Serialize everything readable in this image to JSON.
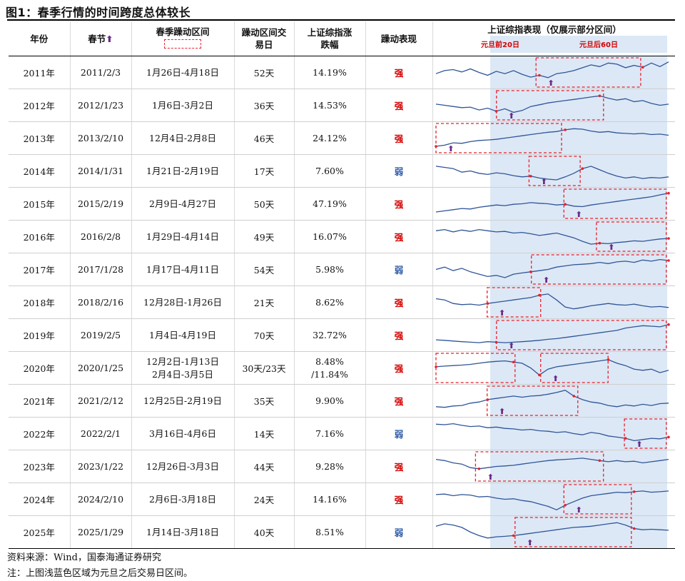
{
  "title": "图1：春季行情的时间跨度总体较长",
  "headers": {
    "year": "年份",
    "spring_festival": "春节",
    "spring_festival_arrow": "⬆",
    "interval_line1": "春季躁动区间",
    "trading_days_line1": "躁动区间交",
    "trading_days_line2": "易日",
    "change_line1": "上证综指涨",
    "change_line2": "跌幅",
    "performance": "躁动表现",
    "chart": "上证综指表现（仅展示部分区间）",
    "chart_label_before": "元旦前20日",
    "chart_label_after": "元旦后60日"
  },
  "colors": {
    "strong": "#d40000",
    "weak": "#2e5aa8",
    "line": "#2f5597",
    "shade": "#dce8f6",
    "dash": "#e8202a",
    "arrow": "#6a2a8a"
  },
  "rows": [
    {
      "year": "2011年",
      "festival": "2011/2/3",
      "interval": "1月26日-4月18日",
      "days": "52天",
      "change": "14.19%",
      "perf": "强",
      "strong": true,
      "boxes": [
        [
          0.43,
          0.88
        ]
      ],
      "line": [
        0.55,
        0.42,
        0.38,
        0.48,
        0.35,
        0.5,
        0.62,
        0.45,
        0.55,
        0.42,
        0.58,
        0.7,
        0.62,
        0.72,
        0.55,
        0.5,
        0.42,
        0.3,
        0.18,
        0.25,
        0.1,
        0.15,
        0.3,
        0.2,
        0.28,
        0.1,
        0.25,
        0.05
      ]
    },
    {
      "year": "2012年",
      "festival": "2012/1/23",
      "interval": "1月6日-3月2日",
      "days": "36天",
      "change": "14.53%",
      "perf": "强",
      "strong": true,
      "boxes": [
        [
          0.26,
          0.72
        ]
      ],
      "line": [
        0.45,
        0.5,
        0.55,
        0.6,
        0.58,
        0.7,
        0.62,
        0.75,
        0.65,
        0.8,
        0.72,
        0.55,
        0.48,
        0.4,
        0.35,
        0.3,
        0.25,
        0.2,
        0.15,
        0.1,
        0.2,
        0.28,
        0.22,
        0.35,
        0.3,
        0.42,
        0.5,
        0.45
      ]
    },
    {
      "year": "2013年",
      "festival": "2013/2/10",
      "interval": "12月4日-2月8日",
      "days": "46天",
      "change": "24.12%",
      "perf": "强",
      "strong": true,
      "boxes": [
        [
          0.0,
          0.54
        ]
      ],
      "line": [
        0.85,
        0.8,
        0.7,
        0.72,
        0.65,
        0.6,
        0.58,
        0.55,
        0.5,
        0.45,
        0.4,
        0.35,
        0.3,
        0.25,
        0.22,
        0.15,
        0.1,
        0.12,
        0.2,
        0.25,
        0.22,
        0.28,
        0.3,
        0.32,
        0.3,
        0.35,
        0.33,
        0.38
      ]
    },
    {
      "year": "2014年",
      "festival": "2014/1/31",
      "interval": "1月21日-2月19日",
      "days": "17天",
      "change": "7.60%",
      "perf": "弱",
      "strong": false,
      "boxes": [
        [
          0.4,
          0.62
        ]
      ],
      "line": [
        0.3,
        0.35,
        0.4,
        0.55,
        0.5,
        0.6,
        0.65,
        0.58,
        0.62,
        0.7,
        0.75,
        0.72,
        0.8,
        0.85,
        0.88,
        0.75,
        0.6,
        0.4,
        0.3,
        0.45,
        0.6,
        0.72,
        0.8,
        0.75,
        0.82,
        0.78,
        0.8,
        0.75
      ]
    },
    {
      "year": "2015年",
      "festival": "2015/2/19",
      "interval": "2月9日-4月27日",
      "days": "50天",
      "change": "47.19%",
      "perf": "强",
      "strong": true,
      "boxes": [
        [
          0.55,
          0.99
        ]
      ],
      "line": [
        0.85,
        0.8,
        0.75,
        0.7,
        0.72,
        0.65,
        0.6,
        0.55,
        0.58,
        0.52,
        0.5,
        0.45,
        0.48,
        0.5,
        0.55,
        0.52,
        0.6,
        0.62,
        0.55,
        0.5,
        0.45,
        0.4,
        0.35,
        0.3,
        0.25,
        0.2,
        0.12,
        0.05
      ]
    },
    {
      "year": "2016年",
      "festival": "2016/2/8",
      "interval": "1月29日-4月14日",
      "days": "49天",
      "change": "16.07%",
      "perf": "强",
      "strong": true,
      "boxes": [
        [
          0.69,
          0.99
        ]
      ],
      "line": [
        0.25,
        0.2,
        0.3,
        0.22,
        0.28,
        0.2,
        0.25,
        0.3,
        0.28,
        0.35,
        0.32,
        0.38,
        0.45,
        0.4,
        0.35,
        0.45,
        0.55,
        0.7,
        0.82,
        0.78,
        0.8,
        0.75,
        0.72,
        0.68,
        0.7,
        0.65,
        0.6,
        0.58
      ]
    },
    {
      "year": "2017年",
      "festival": "2017/1/28",
      "interval": "1月17日-4月11日",
      "days": "54天",
      "change": "5.98%",
      "perf": "弱",
      "strong": false,
      "boxes": [
        [
          0.41,
          0.99
        ]
      ],
      "line": [
        0.5,
        0.4,
        0.55,
        0.45,
        0.6,
        0.7,
        0.8,
        0.75,
        0.85,
        0.7,
        0.65,
        0.6,
        0.55,
        0.5,
        0.4,
        0.35,
        0.3,
        0.28,
        0.25,
        0.2,
        0.25,
        0.18,
        0.15,
        0.2,
        0.1,
        0.15,
        0.08,
        0.12
      ]
    },
    {
      "year": "2018年",
      "festival": "2018/2/16",
      "interval": "12月28日-1月26日",
      "days": "21天",
      "change": "8.62%",
      "perf": "强",
      "strong": true,
      "boxes": [
        [
          0.22,
          0.45
        ]
      ],
      "line": [
        0.35,
        0.4,
        0.55,
        0.6,
        0.58,
        0.62,
        0.55,
        0.5,
        0.45,
        0.4,
        0.35,
        0.3,
        0.2,
        0.15,
        0.4,
        0.7,
        0.78,
        0.72,
        0.65,
        0.6,
        0.55,
        0.6,
        0.62,
        0.58,
        0.65,
        0.7,
        0.68,
        0.72
      ]
    },
    {
      "year": "2019年",
      "festival": "2019/2/5",
      "interval": "1月4日-4月19日",
      "days": "70天",
      "change": "32.72%",
      "perf": "强",
      "strong": true,
      "boxes": [
        [
          0.26,
          0.99
        ]
      ],
      "line": [
        0.7,
        0.72,
        0.75,
        0.78,
        0.8,
        0.82,
        0.78,
        0.8,
        0.82,
        0.8,
        0.78,
        0.75,
        0.72,
        0.68,
        0.65,
        0.6,
        0.55,
        0.5,
        0.45,
        0.4,
        0.35,
        0.3,
        0.2,
        0.15,
        0.1,
        0.12,
        0.15,
        0.05
      ]
    },
    {
      "year": "2020年",
      "festival": "2020/1/25",
      "interval": "12月2日-1月13日\n2月4日-3月5日",
      "days": "30天/23天",
      "change": "8.48%\n/11.84%",
      "perf": "强",
      "strong": true,
      "boxes": [
        [
          0.0,
          0.34
        ],
        [
          0.45,
          0.74
        ]
      ],
      "line": [
        0.45,
        0.42,
        0.4,
        0.38,
        0.35,
        0.3,
        0.25,
        0.22,
        0.2,
        0.25,
        0.3,
        0.5,
        0.8,
        0.55,
        0.45,
        0.4,
        0.35,
        0.3,
        0.25,
        0.2,
        0.15,
        0.3,
        0.4,
        0.55,
        0.6,
        0.55,
        0.7,
        0.6
      ]
    },
    {
      "year": "2021年",
      "festival": "2021/2/12",
      "interval": "12月25日-2月19日",
      "days": "35天",
      "change": "9.90%",
      "perf": "强",
      "strong": true,
      "boxes": [
        [
          0.22,
          0.61
        ]
      ],
      "line": [
        0.75,
        0.78,
        0.72,
        0.7,
        0.6,
        0.55,
        0.45,
        0.4,
        0.35,
        0.3,
        0.35,
        0.3,
        0.28,
        0.22,
        0.15,
        0.05,
        0.3,
        0.45,
        0.55,
        0.6,
        0.7,
        0.75,
        0.68,
        0.72,
        0.65,
        0.7,
        0.62,
        0.6
      ]
    },
    {
      "year": "2022年",
      "festival": "2022/2/1",
      "interval": "3月16日-4月6日",
      "days": "14天",
      "change": "7.16%",
      "perf": "弱",
      "strong": false,
      "boxes": [
        [
          0.81,
          0.99
        ]
      ],
      "line": [
        0.1,
        0.12,
        0.08,
        0.15,
        0.2,
        0.18,
        0.25,
        0.22,
        0.28,
        0.3,
        0.35,
        0.32,
        0.38,
        0.4,
        0.45,
        0.42,
        0.5,
        0.55,
        0.45,
        0.5,
        0.6,
        0.65,
        0.7,
        0.8,
        0.75,
        0.7,
        0.72,
        0.65
      ]
    },
    {
      "year": "2023年",
      "festival": "2023/1/22",
      "interval": "12月26日-3月3日",
      "days": "44天",
      "change": "9.28%",
      "perf": "强",
      "strong": true,
      "boxes": [
        [
          0.17,
          0.72
        ]
      ],
      "line": [
        0.2,
        0.25,
        0.35,
        0.4,
        0.55,
        0.6,
        0.55,
        0.5,
        0.48,
        0.45,
        0.4,
        0.35,
        0.3,
        0.25,
        0.22,
        0.2,
        0.18,
        0.15,
        0.2,
        0.25,
        0.3,
        0.25,
        0.3,
        0.28,
        0.35,
        0.3,
        0.25,
        0.2
      ]
    },
    {
      "year": "2024年",
      "festival": "2024/2/10",
      "interval": "2月6日-3月18日",
      "days": "24天",
      "change": "14.16%",
      "perf": "强",
      "strong": true,
      "boxes": [
        [
          0.55,
          0.84
        ]
      ],
      "line": [
        0.3,
        0.28,
        0.35,
        0.3,
        0.32,
        0.4,
        0.38,
        0.45,
        0.5,
        0.48,
        0.55,
        0.6,
        0.7,
        0.8,
        0.95,
        0.75,
        0.6,
        0.45,
        0.35,
        0.3,
        0.25,
        0.2,
        0.22,
        0.18,
        0.15,
        0.2,
        0.18,
        0.15
      ]
    },
    {
      "year": "2025年",
      "festival": "2025/1/29",
      "interval": "1月14日-3月18日",
      "days": "40天",
      "change": "8.51%",
      "perf": "弱",
      "strong": false,
      "boxes": [
        [
          0.34,
          0.84
        ]
      ],
      "line": [
        0.25,
        0.15,
        0.2,
        0.3,
        0.5,
        0.65,
        0.75,
        0.7,
        0.68,
        0.65,
        0.6,
        0.55,
        0.5,
        0.45,
        0.4,
        0.35,
        0.3,
        0.28,
        0.25,
        0.2,
        0.15,
        0.1,
        0.2,
        0.35,
        0.4,
        0.38,
        0.4,
        0.42
      ]
    }
  ],
  "footer_source": "资料来源：Wind，国泰海通证券研究",
  "footer_note": "注：上图浅蓝色区域为元旦之后交易日区间。"
}
